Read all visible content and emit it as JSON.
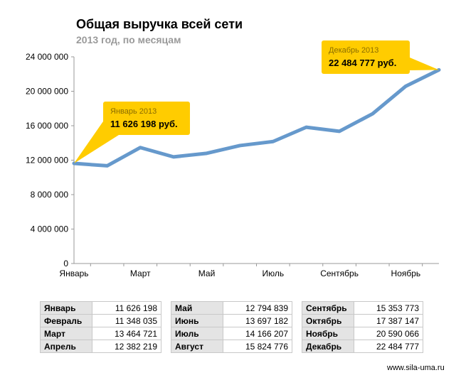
{
  "title": "Общая выручка всей сети",
  "subtitle": "2013 год, по месяцам",
  "footer": "www.sila-uma.ru",
  "colors": {
    "line": "#6699cc",
    "callout": "#ffcc00",
    "axis": "#999999",
    "callout_label": "#8a6d00"
  },
  "callouts": [
    {
      "label": "Январь 2013",
      "value": "11 626 198 руб.",
      "point_index": 0
    },
    {
      "label": "Декабрь 2013",
      "value": "22 484 777 руб.",
      "point_index": 11
    }
  ],
  "chart_data": {
    "type": "line",
    "title": "Общая выручка всей сети",
    "subtitle": "2013 год, по месяцам",
    "categories": [
      "Январь",
      "Февраль",
      "Март",
      "Апрель",
      "Май",
      "Июнь",
      "Июль",
      "Август",
      "Сентябрь",
      "Октябрь",
      "Ноябрь",
      "Декабрь"
    ],
    "x_tick_labels": [
      "Январь",
      "Март",
      "Май",
      "Июль",
      "Сентябрь",
      "Ноябрь"
    ],
    "values": [
      11626198,
      11348035,
      13464721,
      12382219,
      12794839,
      13697182,
      14166207,
      15824776,
      15353773,
      17387147,
      20590066,
      22484777
    ],
    "ylim": [
      0,
      24000000
    ],
    "y_ticks": [
      0,
      4000000,
      8000000,
      12000000,
      16000000,
      20000000,
      24000000
    ],
    "y_tick_labels": [
      "0",
      "4 000 000",
      "8 000 000",
      "12 000 000",
      "16 000 000",
      "20 000 000",
      "24 000 000"
    ],
    "grid": false,
    "legend": "none"
  },
  "table": [
    [
      {
        "month": "Январь",
        "value": "11 626 198"
      },
      {
        "month": "Февраль",
        "value": "11 348 035"
      },
      {
        "month": "Март",
        "value": "13 464 721"
      },
      {
        "month": "Апрель",
        "value": "12 382 219"
      }
    ],
    [
      {
        "month": "Май",
        "value": "12 794 839"
      },
      {
        "month": "Июнь",
        "value": "13 697 182"
      },
      {
        "month": "Июль",
        "value": "14 166 207"
      },
      {
        "month": "Август",
        "value": "15 824 776"
      }
    ],
    [
      {
        "month": "Сентябрь",
        "value": "15 353 773"
      },
      {
        "month": "Октябрь",
        "value": "17 387 147"
      },
      {
        "month": "Ноябрь",
        "value": "20 590 066"
      },
      {
        "month": "Декабрь",
        "value": "22 484 777"
      }
    ]
  ]
}
